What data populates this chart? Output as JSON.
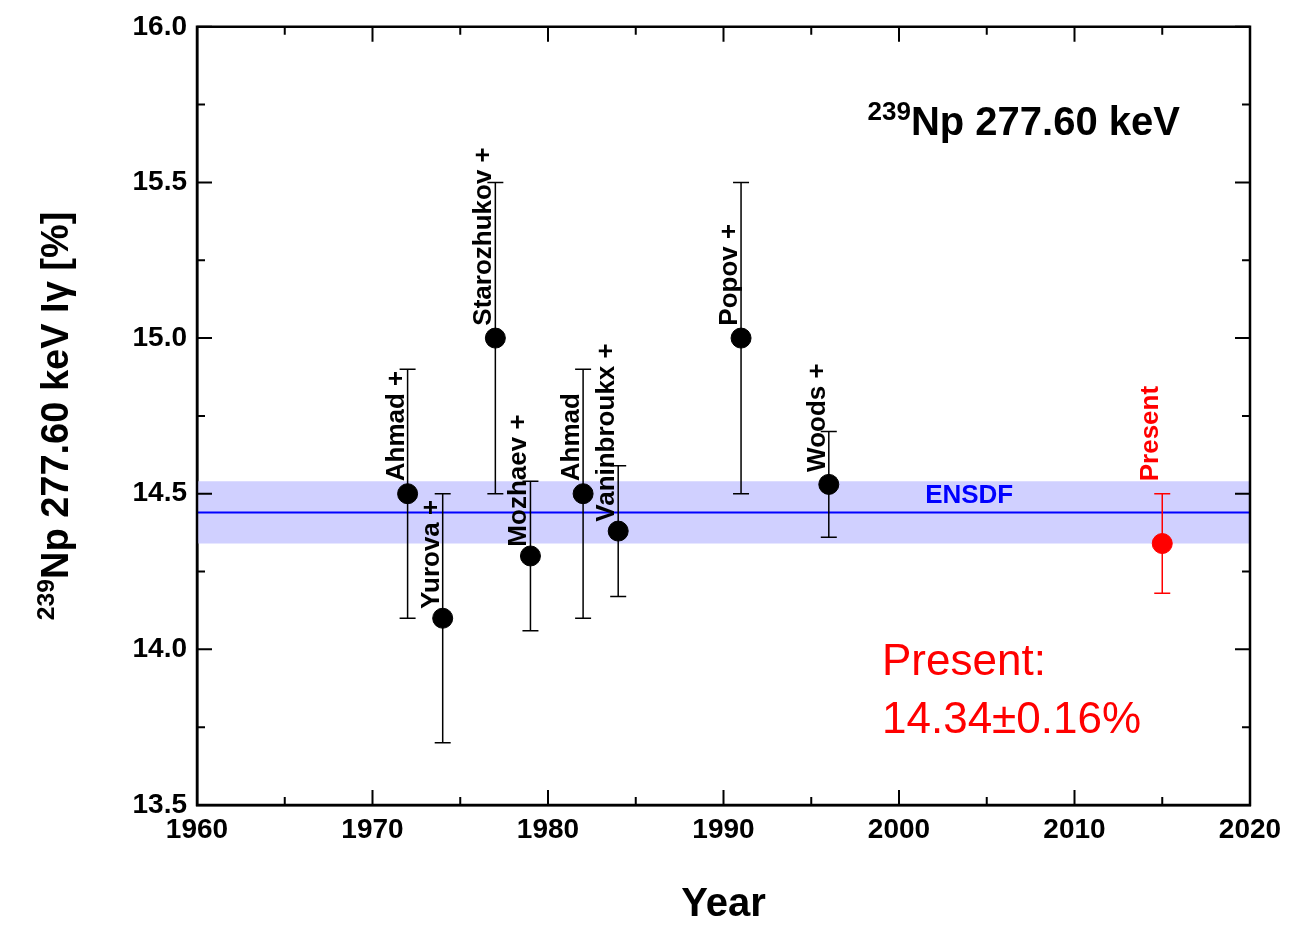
{
  "chart_data": {
    "type": "scatter",
    "xlabel": "Year",
    "ylabel": "$^{239}$Np 277.60 keV Iγ [%]",
    "xlim": [
      1960,
      2020
    ],
    "xticks": [
      1960,
      {
        "value": 1965,
        "label": null
      },
      1970,
      {
        "value": 1975,
        "label": null
      },
      1980,
      {
        "value": 1985,
        "label": null
      },
      1990,
      {
        "value": 1995,
        "label": null
      },
      2000,
      {
        "value": 2005,
        "label": null
      },
      2010,
      {
        "value": 2015,
        "label": null
      },
      2020
    ],
    "ylim": [
      13.5,
      16.0
    ],
    "yticks": [
      13.5,
      {
        "value": 13.75,
        "label": null
      },
      {
        "value": 14.0,
        "label": "14.0"
      },
      {
        "value": 14.25,
        "label": null
      },
      14.5,
      {
        "value": 14.75,
        "label": null
      },
      {
        "value": 15.0,
        "label": "15.0"
      },
      {
        "value": 15.25,
        "label": null
      },
      15.5,
      {
        "value": 15.75,
        "label": null
      },
      {
        "value": 16.0,
        "label": "16.0"
      }
    ],
    "grid": false,
    "legend": false,
    "marker": "circle",
    "series": [
      {
        "color": "#000000",
        "x": [
          1972,
          1974,
          1977,
          1979,
          1982,
          1984,
          1991,
          1996
        ],
        "values": [
          14.5,
          14.1,
          15.0,
          14.3,
          14.5,
          14.38,
          15.0,
          14.53
        ],
        "errors": [
          0.4,
          0.4,
          0.5,
          0.24,
          0.4,
          0.21,
          0.5,
          0.17
        ]
      },
      {
        "color": "#ff0000",
        "x": [
          2015
        ],
        "values": [
          14.34
        ],
        "errors": [
          0.16
        ]
      }
    ],
    "ref_lines": [
      {
        "axis": "y",
        "value": 14.44,
        "label": "ENSDF",
        "color": "#0000ff"
      }
    ],
    "bands": [
      {
        "axis": "y",
        "from": 14.34,
        "to": 14.54,
        "color": "#d0d0ff"
      }
    ],
    "annotations": [
      {
        "text": "Ahmad +",
        "x": 1972,
        "y": 14.54
      },
      {
        "text": "Yurova +",
        "x": 1974,
        "y": 14.13
      },
      {
        "text": "Starozhukov +",
        "x": 1977,
        "y": 15.04
      },
      {
        "text": "Mozhaev +",
        "x": 1979,
        "y": 14.33
      },
      {
        "text": "Ahmad",
        "x": 1982,
        "y": 14.54
      },
      {
        "text": "Vaninbroukx +",
        "x": 1984,
        "y": 14.41
      },
      {
        "text": "Popov +",
        "x": 1991,
        "y": 15.04
      },
      {
        "text": "Woods +",
        "x": 1996,
        "y": 14.57
      },
      {
        "text": "Present",
        "x": 2015,
        "y": 14.54
      },
      "$^{239}$Np 277.60 keV",
      "Present:\n14.34±0.16%"
    ]
  }
}
